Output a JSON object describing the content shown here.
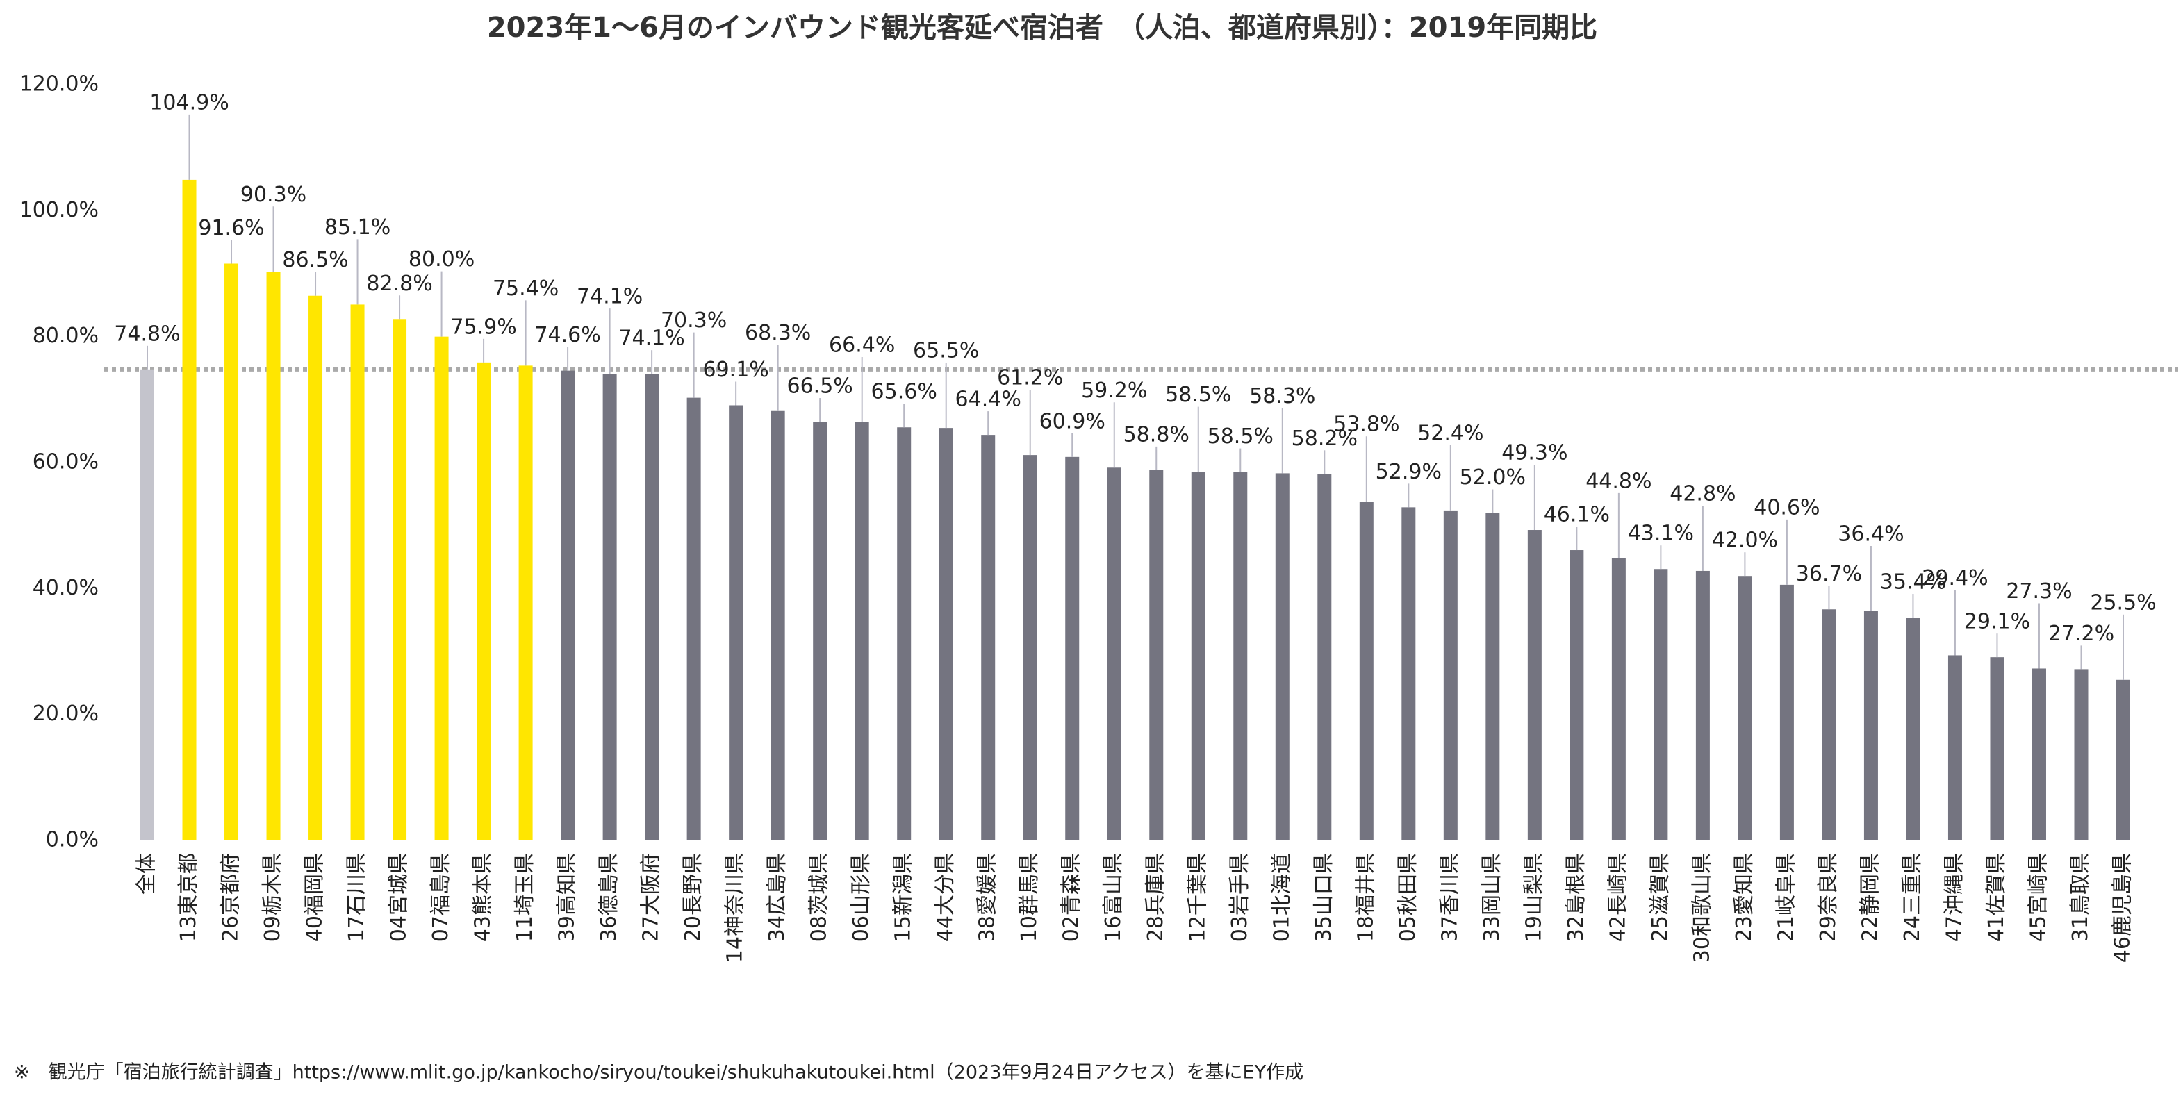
{
  "chart_data": {
    "type": "bar",
    "title": "2023年1～6月のインバウンド観光客延べ宿泊者　（人泊、都道府県別）：2019年同期比",
    "note": "※　観光庁「宿泊旅行統計調査」https://www.mlit.go.jp/kankocho/siryou/toukei/shukuhakutoukei.html（2023年9月24日アクセス）を基にEY作成",
    "categories": [
      "全体",
      "13東京都",
      "26京都府",
      "09栃木県",
      "40福岡県",
      "17石川県",
      "04宮城県",
      "07福島県",
      "43熊本県",
      "11埼玉県",
      "39高知県",
      "36徳島県",
      "27大阪府",
      "20長野県",
      "14神奈川県",
      "34広島県",
      "08茨城県",
      "06山形県",
      "15新潟県",
      "44大分県",
      "38愛媛県",
      "10群馬県",
      "02青森県",
      "16富山県",
      "28兵庫県",
      "12千葉県",
      "03岩手県",
      "01北海道",
      "35山口県",
      "18福井県",
      "05秋田県",
      "37香川県",
      "33岡山県",
      "19山梨県",
      "32島根県",
      "42長崎県",
      "25滋賀県",
      "30和歌山県",
      "23愛知県",
      "21岐阜県",
      "29奈良県",
      "22静岡県",
      "24三重県",
      "47沖縄県",
      "41佐賀県",
      "45宮崎県",
      "31鳥取県",
      "46鹿児島県"
    ],
    "values": [
      74.8,
      104.9,
      91.6,
      90.3,
      86.5,
      85.1,
      82.8,
      80.0,
      75.9,
      75.4,
      74.6,
      74.1,
      74.1,
      70.3,
      69.1,
      68.3,
      66.5,
      66.4,
      65.6,
      65.5,
      64.4,
      61.2,
      60.9,
      59.2,
      58.8,
      58.5,
      58.5,
      58.3,
      58.2,
      53.8,
      52.9,
      52.4,
      52.0,
      49.3,
      46.1,
      44.8,
      43.1,
      42.8,
      42.0,
      40.6,
      36.7,
      36.4,
      35.4,
      29.4,
      29.1,
      27.3,
      27.2,
      25.5
    ],
    "value_labels": [
      "74.8%",
      "104.9%",
      "91.6%",
      "90.3%",
      "86.5%",
      "85.1%",
      "82.8%",
      "80.0%",
      "75.9%",
      "75.4%",
      "74.6%",
      "74.1%",
      "74.1%",
      "70.3%",
      "69.1%",
      "68.3%",
      "66.5%",
      "66.4%",
      "65.6%",
      "65.5%",
      "64.4%",
      "61.2%",
      "60.9%",
      "59.2%",
      "58.8%",
      "58.5%",
      "58.5%",
      "58.3%",
      "58.2%",
      "53.8%",
      "52.9%",
      "52.4%",
      "52.0%",
      "49.3%",
      "46.1%",
      "44.8%",
      "43.1%",
      "42.8%",
      "42.0%",
      "40.6%",
      "36.7%",
      "36.4%",
      "35.4%",
      "29.4%",
      "29.1%",
      "27.3%",
      "27.2%",
      "25.5%"
    ],
    "colors": [
      "#c4c4cc",
      "#ffe600",
      "#ffe600",
      "#ffe600",
      "#ffe600",
      "#ffe600",
      "#ffe600",
      "#ffe600",
      "#ffe600",
      "#ffe600",
      "#747480",
      "#747480",
      "#747480",
      "#747480",
      "#747480",
      "#747480",
      "#747480",
      "#747480",
      "#747480",
      "#747480",
      "#747480",
      "#747480",
      "#747480",
      "#747480",
      "#747480",
      "#747480",
      "#747480",
      "#747480",
      "#747480",
      "#747480",
      "#747480",
      "#747480",
      "#747480",
      "#747480",
      "#747480",
      "#747480",
      "#747480",
      "#747480",
      "#747480",
      "#747480",
      "#747480",
      "#747480",
      "#747480",
      "#747480",
      "#747480",
      "#747480",
      "#747480",
      "#747480"
    ],
    "reference_color": "#aaaaaa",
    "ylim": [
      0,
      120
    ],
    "yticks": [
      {
        "value": 0,
        "label": "0.0%"
      },
      {
        "value": 20,
        "label": "20.0%"
      },
      {
        "value": 40,
        "label": "40.0%"
      },
      {
        "value": 60,
        "label": "60.0%"
      },
      {
        "value": 80,
        "label": "80.0%"
      },
      {
        "value": 100,
        "label": "100.0%"
      },
      {
        "value": 120,
        "label": "120.0%"
      }
    ],
    "grid": false
  }
}
